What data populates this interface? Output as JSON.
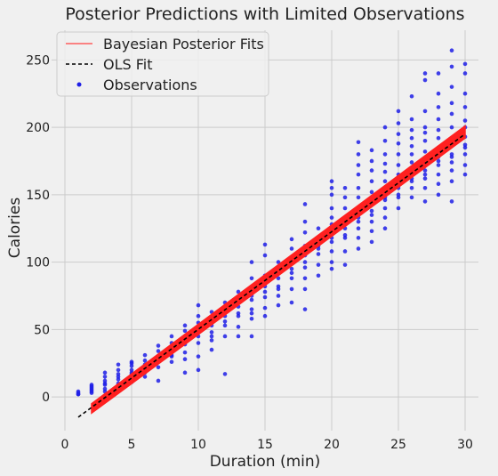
{
  "chart_data": {
    "type": "scatter",
    "title": "Posterior Predictions with Limited Observations",
    "xlabel": "Duration (min)",
    "ylabel": "Calories",
    "xlim": [
      -1,
      31
    ],
    "ylim": [
      -25,
      272
    ],
    "xticks": [
      0,
      5,
      10,
      15,
      20,
      25,
      30
    ],
    "yticks": [
      0,
      50,
      100,
      150,
      200,
      250
    ],
    "grid": true,
    "legend_position": "upper-left",
    "legend": [
      {
        "label": "Bayesian Posterior Fits",
        "marker": "line",
        "color": "#ff4040"
      },
      {
        "label": "OLS Fit",
        "marker": "dashed-line",
        "color": "#000000"
      },
      {
        "label": "Observations",
        "marker": "dot",
        "color": "#1f1fe6"
      }
    ],
    "series": [
      {
        "name": "Observations",
        "kind": "scatter",
        "color": "#1f1fe6",
        "points": [
          [
            1,
            2
          ],
          [
            1,
            3
          ],
          [
            1,
            4
          ],
          [
            1,
            2
          ],
          [
            2,
            3
          ],
          [
            2,
            5
          ],
          [
            2,
            6
          ],
          [
            2,
            8
          ],
          [
            2,
            9
          ],
          [
            2,
            7
          ],
          [
            2,
            4
          ],
          [
            3,
            6
          ],
          [
            3,
            9
          ],
          [
            3,
            12
          ],
          [
            3,
            15
          ],
          [
            3,
            4
          ],
          [
            3,
            18
          ],
          [
            3,
            10
          ],
          [
            4,
            10
          ],
          [
            4,
            13
          ],
          [
            4,
            17
          ],
          [
            4,
            20
          ],
          [
            4,
            24
          ],
          [
            4,
            8
          ],
          [
            4,
            15
          ],
          [
            5,
            14
          ],
          [
            5,
            17
          ],
          [
            5,
            20
          ],
          [
            5,
            23
          ],
          [
            5,
            26
          ],
          [
            5,
            11
          ],
          [
            5,
            18
          ],
          [
            5,
            25
          ],
          [
            6,
            18
          ],
          [
            6,
            21
          ],
          [
            6,
            24
          ],
          [
            6,
            27
          ],
          [
            6,
            31
          ],
          [
            6,
            15
          ],
          [
            6,
            23
          ],
          [
            7,
            22
          ],
          [
            7,
            26
          ],
          [
            7,
            30
          ],
          [
            7,
            34
          ],
          [
            7,
            38
          ],
          [
            7,
            12
          ],
          [
            7,
            28
          ],
          [
            8,
            26
          ],
          [
            8,
            31
          ],
          [
            8,
            36
          ],
          [
            8,
            40
          ],
          [
            8,
            45
          ],
          [
            8,
            30
          ],
          [
            8,
            34
          ],
          [
            9,
            28
          ],
          [
            9,
            33
          ],
          [
            9,
            39
          ],
          [
            9,
            44
          ],
          [
            9,
            49
          ],
          [
            9,
            53
          ],
          [
            9,
            18
          ],
          [
            9,
            42
          ],
          [
            10,
            20
          ],
          [
            10,
            30
          ],
          [
            10,
            40
          ],
          [
            10,
            50
          ],
          [
            10,
            55
          ],
          [
            10,
            60
          ],
          [
            10,
            68
          ],
          [
            10,
            45
          ],
          [
            11,
            35
          ],
          [
            11,
            42
          ],
          [
            11,
            48
          ],
          [
            11,
            53
          ],
          [
            11,
            58
          ],
          [
            11,
            63
          ],
          [
            11,
            45
          ],
          [
            12,
            17
          ],
          [
            12,
            45
          ],
          [
            12,
            53
          ],
          [
            12,
            60
          ],
          [
            12,
            65
          ],
          [
            12,
            70
          ],
          [
            12,
            56
          ],
          [
            13,
            45
          ],
          [
            13,
            52
          ],
          [
            13,
            60
          ],
          [
            13,
            67
          ],
          [
            13,
            73
          ],
          [
            13,
            78
          ],
          [
            13,
            62
          ],
          [
            14,
            45
          ],
          [
            14,
            58
          ],
          [
            14,
            65
          ],
          [
            14,
            72
          ],
          [
            14,
            80
          ],
          [
            14,
            88
          ],
          [
            14,
            100
          ],
          [
            14,
            62
          ],
          [
            14,
            75
          ],
          [
            15,
            60
          ],
          [
            15,
            66
          ],
          [
            15,
            74
          ],
          [
            15,
            82
          ],
          [
            15,
            90
          ],
          [
            15,
            105
          ],
          [
            15,
            113
          ],
          [
            15,
            78
          ],
          [
            16,
            68
          ],
          [
            16,
            75
          ],
          [
            16,
            82
          ],
          [
            16,
            88
          ],
          [
            16,
            95
          ],
          [
            16,
            100
          ],
          [
            16,
            80
          ],
          [
            17,
            70
          ],
          [
            17,
            80
          ],
          [
            17,
            88
          ],
          [
            17,
            95
          ],
          [
            17,
            102
          ],
          [
            17,
            110
          ],
          [
            17,
            117
          ],
          [
            17,
            92
          ],
          [
            18,
            65
          ],
          [
            18,
            80
          ],
          [
            18,
            88
          ],
          [
            18,
            96
          ],
          [
            18,
            105
          ],
          [
            18,
            112
          ],
          [
            18,
            122
          ],
          [
            18,
            130
          ],
          [
            18,
            143
          ],
          [
            18,
            100
          ],
          [
            19,
            90
          ],
          [
            19,
            98
          ],
          [
            19,
            106
          ],
          [
            19,
            112
          ],
          [
            19,
            118
          ],
          [
            19,
            125
          ],
          [
            19,
            110
          ],
          [
            20,
            95
          ],
          [
            20,
            100
          ],
          [
            20,
            108
          ],
          [
            20,
            115
          ],
          [
            20,
            122
          ],
          [
            20,
            128
          ],
          [
            20,
            133
          ],
          [
            20,
            140
          ],
          [
            20,
            150
          ],
          [
            20,
            155
          ],
          [
            20,
            160
          ],
          [
            20,
            118
          ],
          [
            21,
            98
          ],
          [
            21,
            108
          ],
          [
            21,
            118
          ],
          [
            21,
            125
          ],
          [
            21,
            132
          ],
          [
            21,
            140
          ],
          [
            21,
            148
          ],
          [
            21,
            155
          ],
          [
            21,
            120
          ],
          [
            22,
            110
          ],
          [
            22,
            118
          ],
          [
            22,
            125
          ],
          [
            22,
            133
          ],
          [
            22,
            140
          ],
          [
            22,
            148
          ],
          [
            22,
            155
          ],
          [
            22,
            165
          ],
          [
            22,
            172
          ],
          [
            22,
            180
          ],
          [
            22,
            189
          ],
          [
            22,
            130
          ],
          [
            23,
            115
          ],
          [
            23,
            123
          ],
          [
            23,
            130
          ],
          [
            23,
            138
          ],
          [
            23,
            145
          ],
          [
            23,
            152
          ],
          [
            23,
            160
          ],
          [
            23,
            168
          ],
          [
            23,
            175
          ],
          [
            23,
            183
          ],
          [
            23,
            135
          ],
          [
            24,
            125
          ],
          [
            24,
            133
          ],
          [
            24,
            140
          ],
          [
            24,
            146
          ],
          [
            24,
            152
          ],
          [
            24,
            160
          ],
          [
            24,
            167
          ],
          [
            24,
            173
          ],
          [
            24,
            180
          ],
          [
            24,
            190
          ],
          [
            24,
            200
          ],
          [
            24,
            148
          ],
          [
            25,
            140
          ],
          [
            25,
            148
          ],
          [
            25,
            155
          ],
          [
            25,
            160
          ],
          [
            25,
            165
          ],
          [
            25,
            172
          ],
          [
            25,
            180
          ],
          [
            25,
            188
          ],
          [
            25,
            195
          ],
          [
            25,
            203
          ],
          [
            25,
            212
          ],
          [
            25,
            150
          ],
          [
            26,
            148
          ],
          [
            26,
            155
          ],
          [
            26,
            162
          ],
          [
            26,
            168
          ],
          [
            26,
            174
          ],
          [
            26,
            180
          ],
          [
            26,
            186
          ],
          [
            26,
            192
          ],
          [
            26,
            198
          ],
          [
            26,
            206
          ],
          [
            26,
            223
          ],
          [
            26,
            160
          ],
          [
            27,
            145
          ],
          [
            27,
            155
          ],
          [
            27,
            162
          ],
          [
            27,
            168
          ],
          [
            27,
            175
          ],
          [
            27,
            182
          ],
          [
            27,
            190
          ],
          [
            27,
            196
          ],
          [
            27,
            200
          ],
          [
            27,
            212
          ],
          [
            27,
            235
          ],
          [
            27,
            240
          ],
          [
            27,
            165
          ],
          [
            28,
            150
          ],
          [
            28,
            158
          ],
          [
            28,
            165
          ],
          [
            28,
            172
          ],
          [
            28,
            178
          ],
          [
            28,
            185
          ],
          [
            28,
            192
          ],
          [
            28,
            198
          ],
          [
            28,
            206
          ],
          [
            28,
            215
          ],
          [
            28,
            225
          ],
          [
            28,
            240
          ],
          [
            28,
            175
          ],
          [
            29,
            145
          ],
          [
            29,
            160
          ],
          [
            29,
            168
          ],
          [
            29,
            174
          ],
          [
            29,
            180
          ],
          [
            29,
            186
          ],
          [
            29,
            192
          ],
          [
            29,
            200
          ],
          [
            29,
            210
          ],
          [
            29,
            218
          ],
          [
            29,
            230
          ],
          [
            29,
            245
          ],
          [
            29,
            257
          ],
          [
            29,
            178
          ],
          [
            30,
            165
          ],
          [
            30,
            172
          ],
          [
            30,
            180
          ],
          [
            30,
            187
          ],
          [
            30,
            193
          ],
          [
            30,
            200
          ],
          [
            30,
            205
          ],
          [
            30,
            215
          ],
          [
            30,
            225
          ],
          [
            30,
            240
          ],
          [
            30,
            247
          ],
          [
            30,
            185
          ]
        ]
      },
      {
        "name": "Bayesian Posterior Fits",
        "kind": "band",
        "color": "#ff2020",
        "x": [
          2,
          30
        ],
        "lower": [
          -12,
          192
        ],
        "upper": [
          -5,
          201
        ]
      },
      {
        "name": "OLS Fit",
        "kind": "dashed-line",
        "color": "#000000",
        "x": [
          1,
          30
        ],
        "y": [
          -15,
          195
        ]
      }
    ]
  }
}
